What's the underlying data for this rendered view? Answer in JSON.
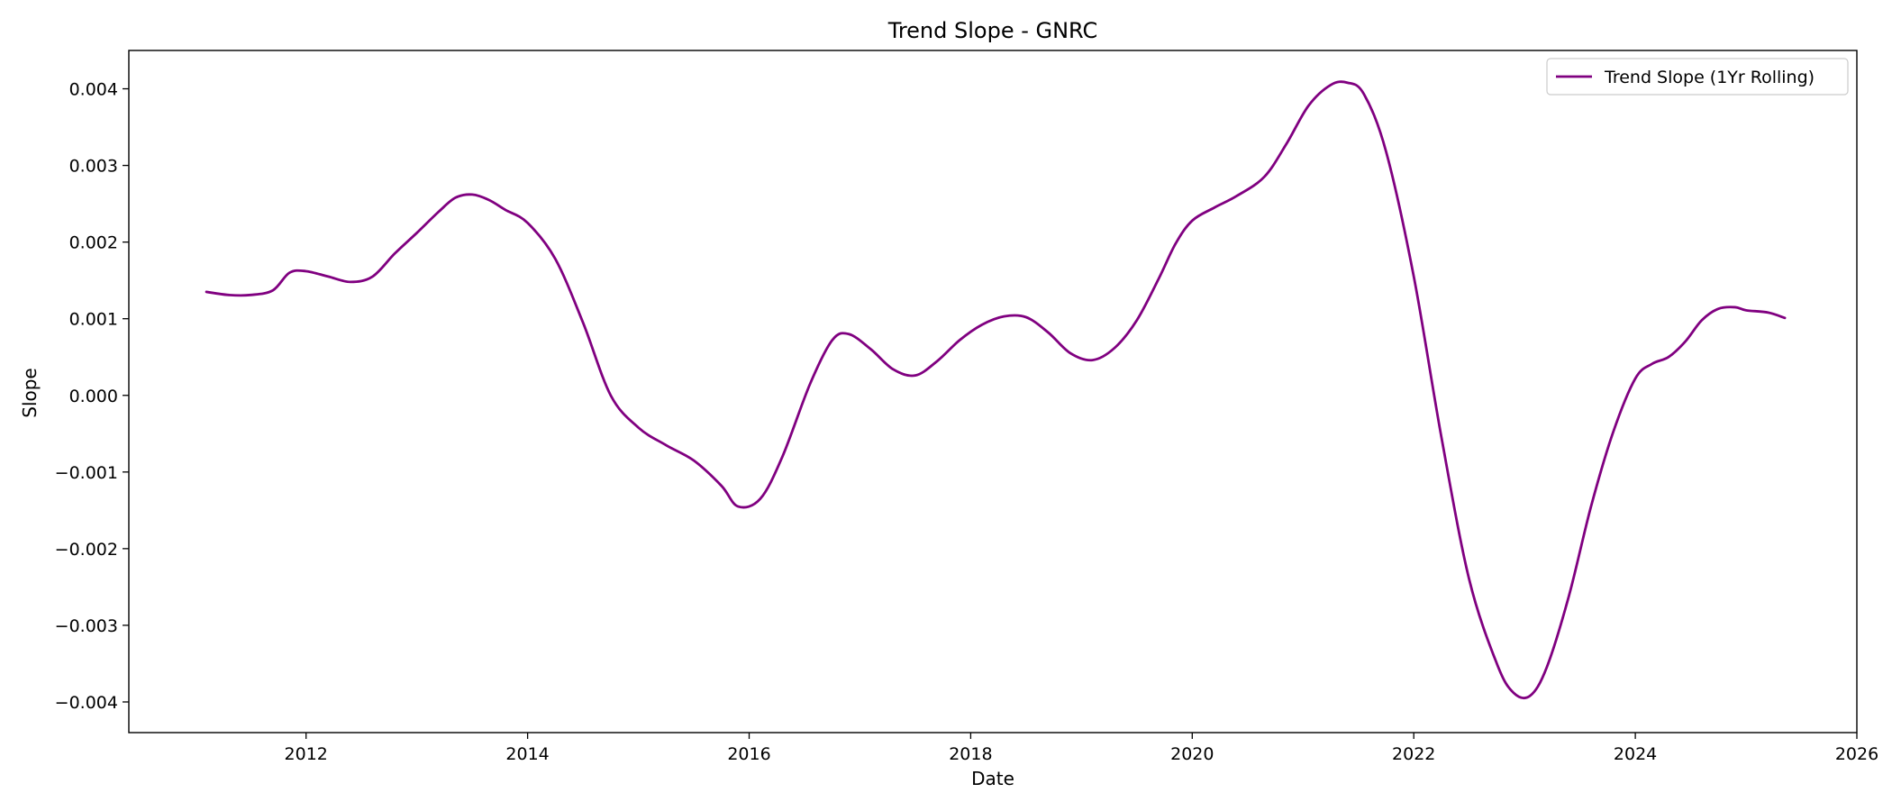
{
  "chart_data": {
    "type": "line",
    "title": "Trend Slope - GNRC",
    "xlabel": "Date",
    "ylabel": "Slope",
    "xlim": [
      2010.4,
      2026.0
    ],
    "ylim": [
      -0.0044,
      0.0045
    ],
    "x_ticks": [
      2012,
      2014,
      2016,
      2018,
      2020,
      2022,
      2024,
      2026
    ],
    "x_tick_labels": [
      "2012",
      "2014",
      "2016",
      "2018",
      "2020",
      "2022",
      "2024",
      "2026"
    ],
    "y_ticks": [
      -0.004,
      -0.003,
      -0.002,
      -0.001,
      0.0,
      0.001,
      0.002,
      0.003,
      0.004
    ],
    "y_tick_labels": [
      "−0.004",
      "−0.003",
      "−0.002",
      "−0.001",
      "0.000",
      "0.001",
      "0.002",
      "0.003",
      "0.004"
    ],
    "grid": false,
    "legend_position": "top-right",
    "series": [
      {
        "name": "Trend Slope (1Yr Rolling)",
        "color": "#800080",
        "x": [
          2011.1,
          2011.3,
          2011.5,
          2011.7,
          2011.85,
          2012.0,
          2012.2,
          2012.4,
          2012.6,
          2012.8,
          2013.0,
          2013.2,
          2013.35,
          2013.5,
          2013.65,
          2013.8,
          2014.0,
          2014.25,
          2014.5,
          2014.75,
          2015.0,
          2015.25,
          2015.5,
          2015.75,
          2015.9,
          2016.1,
          2016.3,
          2016.55,
          2016.75,
          2016.9,
          2017.1,
          2017.3,
          2017.5,
          2017.7,
          2017.9,
          2018.1,
          2018.3,
          2018.5,
          2018.7,
          2018.9,
          2019.1,
          2019.3,
          2019.5,
          2019.7,
          2019.85,
          2020.0,
          2020.2,
          2020.4,
          2020.65,
          2020.85,
          2021.05,
          2021.25,
          2021.4,
          2021.55,
          2021.75,
          2022.0,
          2022.25,
          2022.5,
          2022.75,
          2022.9,
          2023.05,
          2023.2,
          2023.4,
          2023.6,
          2023.8,
          2024.0,
          2024.15,
          2024.3,
          2024.45,
          2024.6,
          2024.75,
          2024.9,
          2025.0,
          2025.2,
          2025.35
        ],
        "values": [
          0.00135,
          0.00131,
          0.00131,
          0.00137,
          0.0016,
          0.00162,
          0.00155,
          0.00148,
          0.00155,
          0.00185,
          0.00212,
          0.0024,
          0.00258,
          0.00262,
          0.00255,
          0.00242,
          0.00225,
          0.00178,
          0.00095,
          0.0,
          -0.00042,
          -0.00065,
          -0.00085,
          -0.00118,
          -0.00145,
          -0.00135,
          -0.0008,
          0.00015,
          0.00072,
          0.0008,
          0.0006,
          0.00034,
          0.00026,
          0.00045,
          0.00072,
          0.00092,
          0.00103,
          0.00102,
          0.00082,
          0.00055,
          0.00046,
          0.00062,
          0.00098,
          0.00153,
          0.00198,
          0.00228,
          0.00245,
          0.0026,
          0.00285,
          0.00328,
          0.00378,
          0.00405,
          0.00408,
          0.00393,
          0.00318,
          0.00155,
          -0.00055,
          -0.0024,
          -0.0035,
          -0.00388,
          -0.00392,
          -0.00355,
          -0.00262,
          -0.00145,
          -0.00048,
          0.00022,
          0.00041,
          0.0005,
          0.0007,
          0.00098,
          0.00113,
          0.00115,
          0.00111,
          0.00108,
          0.00101
        ]
      }
    ]
  }
}
